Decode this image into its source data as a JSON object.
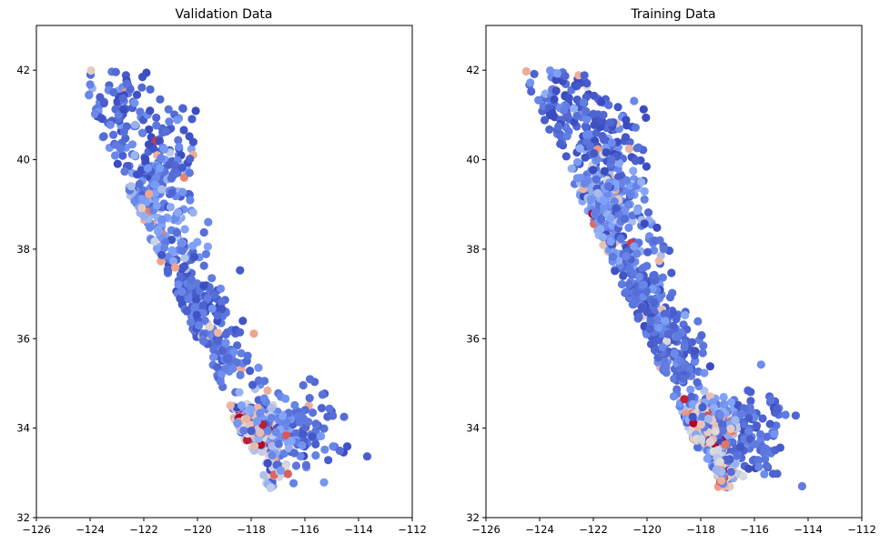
{
  "chart_data": [
    {
      "type": "scatter",
      "title": "Validation Data",
      "xlabel": "",
      "ylabel": "",
      "xlim": [
        -126,
        -112
      ],
      "ylim": [
        32,
        43
      ],
      "xticks": [
        "−126",
        "−124",
        "−122",
        "−120",
        "−118",
        "−116",
        "−114",
        "−112"
      ],
      "yticks": [
        "32",
        "34",
        "36",
        "38",
        "40",
        "42"
      ],
      "colormap": "coolwarm",
      "color_low": "#3b4cc0",
      "color_high": "#b40426",
      "points_note": "approx. 1,000 points, longitude vs latitude, colored by value",
      "seed": 11,
      "n_points": 950
    },
    {
      "type": "scatter",
      "title": "Training Data",
      "xlabel": "",
      "ylabel": "",
      "xlim": [
        -126,
        -112
      ],
      "ylim": [
        32,
        43
      ],
      "xticks": [
        "−126",
        "−124",
        "−122",
        "−120",
        "−118",
        "−116",
        "−114",
        "−112"
      ],
      "yticks": [
        "32",
        "34",
        "36",
        "38",
        "40",
        "42"
      ],
      "colormap": "coolwarm",
      "color_low": "#3b4cc0",
      "color_high": "#b40426",
      "points_note": "approx. 1,500 points, longitude vs latitude, colored by value",
      "seed": 29,
      "n_points": 1400
    }
  ]
}
